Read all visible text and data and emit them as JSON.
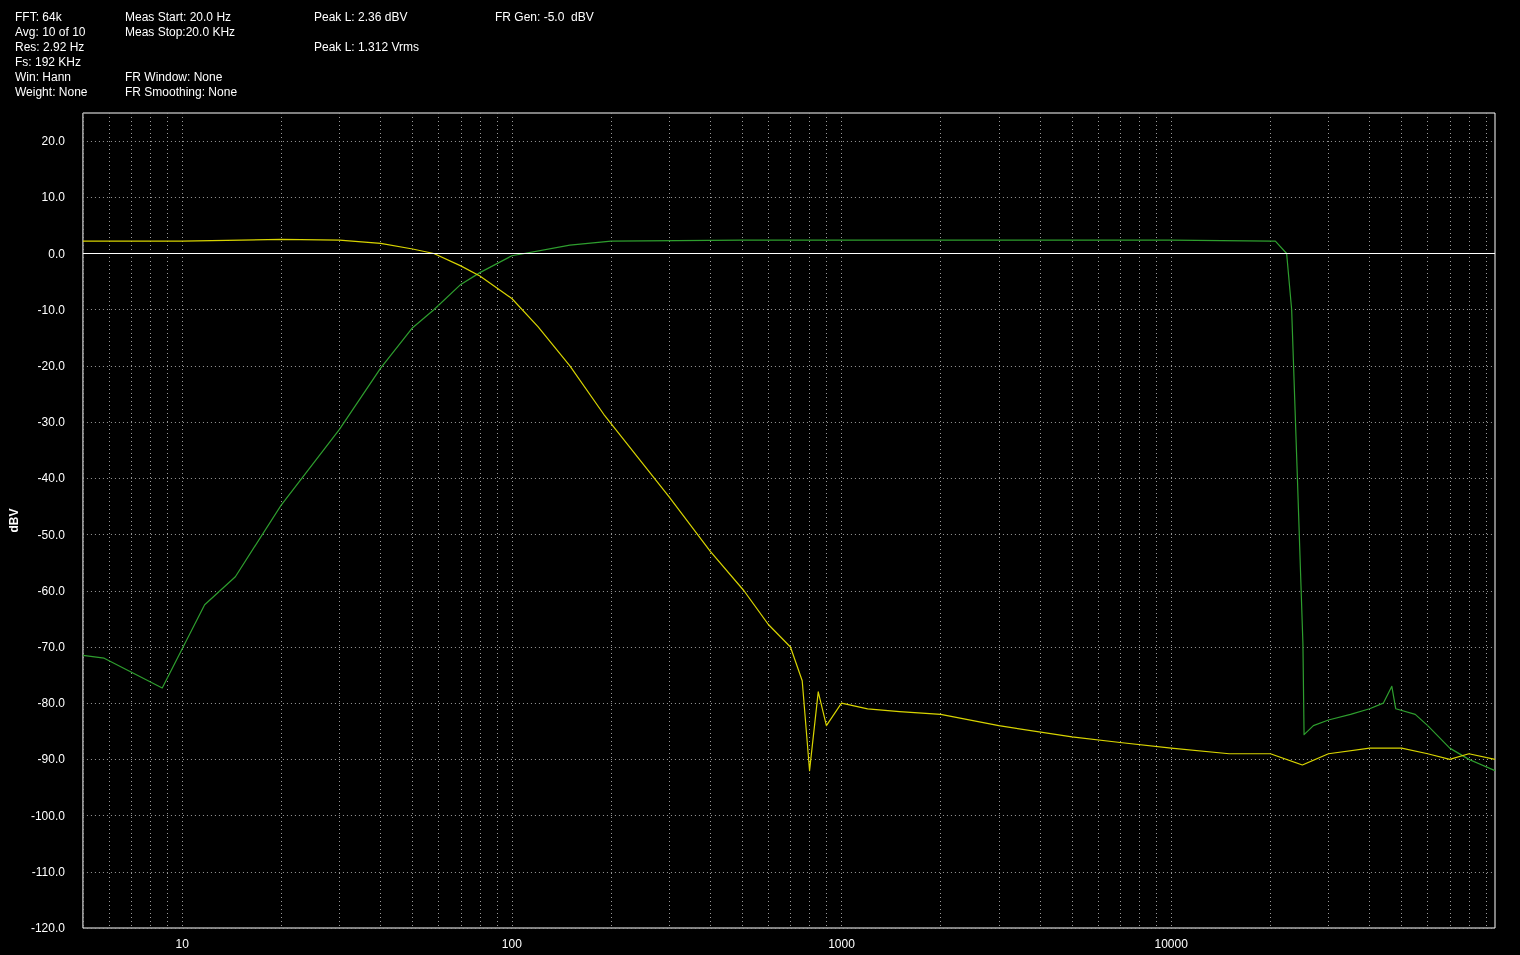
{
  "chart_data": {
    "type": "line",
    "ylabel": "dBV",
    "log": "x",
    "grid": true,
    "marker": "none",
    "line_style": "solid",
    "annotations": [
      "FFT: 64k",
      "Avg: 10 of 10",
      "Res: 2.92 Hz",
      "Fs: 192 KHz",
      "Win: Hann",
      "Weight: None",
      "Meas Start: 20.0 Hz",
      "Meas Stop:20.0 KHz",
      "FR Window: None",
      "FR Smoothing: None",
      "Peak L: 2.36 dBV",
      "Peak L: 1.312 Vrms",
      "FR Gen: -5.0  dBV"
    ],
    "xlim": [
      5,
      96000
    ],
    "ylim": [
      -120,
      25
    ],
    "xticks": [
      {
        "value": 5,
        "label": null
      },
      {
        "value": 6,
        "label": null
      },
      {
        "value": 7,
        "label": null
      },
      {
        "value": 8,
        "label": null
      },
      {
        "value": 9,
        "label": null
      },
      10,
      {
        "value": 20,
        "label": null
      },
      {
        "value": 30,
        "label": null
      },
      {
        "value": 40,
        "label": null
      },
      {
        "value": 50,
        "label": null
      },
      {
        "value": 60,
        "label": null
      },
      {
        "value": 70,
        "label": null
      },
      {
        "value": 80,
        "label": null
      },
      {
        "value": 90,
        "label": null
      },
      100,
      {
        "value": 200,
        "label": null
      },
      {
        "value": 300,
        "label": null
      },
      {
        "value": 400,
        "label": null
      },
      {
        "value": 500,
        "label": null
      },
      {
        "value": 600,
        "label": null
      },
      {
        "value": 700,
        "label": null
      },
      {
        "value": 800,
        "label": null
      },
      {
        "value": 900,
        "label": null
      },
      1000,
      {
        "value": 2000,
        "label": null
      },
      {
        "value": 3000,
        "label": null
      },
      {
        "value": 4000,
        "label": null
      },
      {
        "value": 5000,
        "label": null
      },
      {
        "value": 6000,
        "label": null
      },
      {
        "value": 7000,
        "label": null
      },
      {
        "value": 8000,
        "label": null
      },
      {
        "value": 9000,
        "label": null
      },
      10000,
      {
        "value": 20000,
        "label": null
      },
      {
        "value": 30000,
        "label": null
      },
      {
        "value": 40000,
        "label": null
      },
      {
        "value": 50000,
        "label": null
      },
      {
        "value": 60000,
        "label": null
      },
      {
        "value": 70000,
        "label": null
      },
      {
        "value": 80000,
        "label": null
      },
      {
        "value": 90000,
        "label": null
      }
    ],
    "yticks": [
      {
        "value": 20,
        "label": "20.0"
      },
      {
        "value": 10,
        "label": "10.0"
      },
      {
        "value": 0,
        "label": "0.0"
      },
      {
        "value": -10,
        "label": "-10.0"
      },
      {
        "value": -20,
        "label": "-20.0"
      },
      {
        "value": -30,
        "label": "-30.0"
      },
      {
        "value": -40,
        "label": "-40.0"
      },
      {
        "value": -50,
        "label": "-50.0"
      },
      {
        "value": -60,
        "label": "-60.0"
      },
      {
        "value": -70,
        "label": "-70.0"
      },
      {
        "value": -80,
        "label": "-80.0"
      },
      {
        "value": -90,
        "label": "-90.0"
      },
      {
        "value": -100,
        "label": "-100.0"
      },
      {
        "value": -110,
        "label": "-110.0"
      },
      {
        "value": -120,
        "label": "-120.0"
      }
    ],
    "ref_lines": [
      {
        "axis": "y",
        "value": 0,
        "color": "#ffffff"
      }
    ],
    "series": [
      {
        "color": "#2e9e2e",
        "x": [
          5,
          5.8,
          8.7,
          11.7,
          14.5,
          20,
          30,
          40,
          50,
          58,
          70,
          80,
          100,
          150,
          200,
          500,
          2000,
          10000,
          20700,
          22400,
          23200,
          24150,
          25100,
          25300,
          27000,
          30000,
          35000,
          40000,
          44000,
          46700,
          48000,
          55000,
          60000,
          70000,
          80000,
          96000
        ],
        "values": [
          -71.5,
          -72,
          -77.3,
          -62.5,
          -57.5,
          -44.7,
          -31.3,
          -20.4,
          -13.2,
          -10,
          -5.5,
          -3.4,
          -0.4,
          1.5,
          2.2,
          2.4,
          2.4,
          2.4,
          2.2,
          0,
          -10,
          -40,
          -69.5,
          -85.6,
          -84,
          -83,
          -82,
          -81,
          -80,
          -77,
          -81,
          -82,
          -84,
          -88,
          -90,
          -92
        ]
      },
      {
        "color": "#d8d400",
        "x": [
          5,
          10,
          20,
          30,
          40,
          50,
          58,
          70,
          80,
          100,
          120,
          150,
          190,
          300,
          400,
          506,
          600,
          700,
          760,
          800,
          850,
          900,
          1000,
          1200,
          1500,
          2000,
          3000,
          5000,
          7000,
          10000,
          15000,
          20000,
          25000,
          30000,
          40000,
          50000,
          60000,
          70000,
          80000,
          96000
        ],
        "values": [
          2.2,
          2.2,
          2.5,
          2.4,
          1.8,
          0.8,
          0,
          -2.2,
          -4,
          -8,
          -13,
          -20,
          -28.6,
          -43.3,
          -53,
          -60,
          -66,
          -70,
          -76,
          -92,
          -78,
          -84,
          -80,
          -81,
          -81.5,
          -82,
          -84,
          -86,
          -87,
          -88,
          -89,
          -89,
          -91,
          -89,
          -88,
          -88,
          -89,
          -90,
          -89,
          -90
        ]
      }
    ]
  }
}
